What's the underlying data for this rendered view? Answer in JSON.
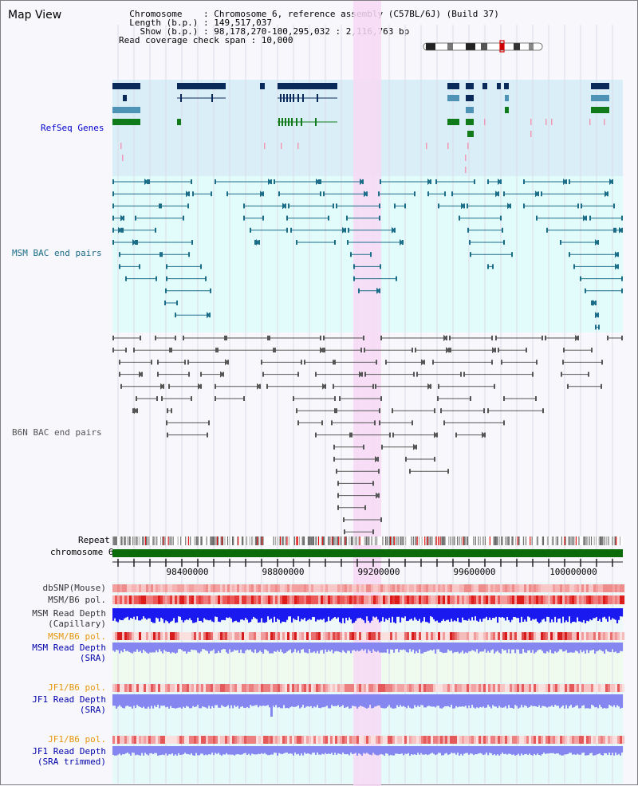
{
  "title": "Map View",
  "info": {
    "line1": "  Chromosome    : Chromosome 6, reference assembly (C57BL/6J) (Build 37)",
    "line2": "  Length (b.p.) : 149,517,037",
    "line3": "    Show (b.p.) : 98,178,270-100,295,032 : 2,116,763 bp",
    "line4": "Read coverage check span : 10,000"
  },
  "tracks": {
    "refseq": "RefSeq Genes",
    "msm_bac": "MSM BAC end pairs",
    "b6n_bac": "B6N BAC end pairs",
    "repeat": "Repeat",
    "chromosome": "chromosome 6",
    "dbsnp": "dbSNP(Mouse)",
    "msm_b6_pol": "MSM/B6 pol.",
    "msm_rd_cap_1": "MSM Read Depth",
    "msm_rd_cap_2": "(Capillary)",
    "msm_b6_pol2": "MSM/B6 pol.",
    "msm_rd_sra_1": "MSM Read Depth",
    "msm_rd_sra_2": "(SRA)",
    "jf1_b6_pol": "JF1/B6 pol.",
    "jf1_rd_sra_1": "JF1 Read Depth",
    "jf1_rd_sra_2": "(SRA)",
    "jf1_b6_pol2": "JF1/B6 pol.",
    "jf1_rd_tr_1": "JF1 Read Depth",
    "jf1_rd_tr_2": "(SRA trimmed)"
  },
  "axis": {
    "ticks": [
      {
        "label": "98400000"
      },
      {
        "label": "98800000"
      },
      {
        "label": "99200000"
      },
      {
        "label": "99600000"
      },
      {
        "label": "100000000"
      }
    ]
  },
  "colors": {
    "refseq_bg": "#daeef8",
    "msm_bg": "#e2fbfb",
    "b6n_bg": "#f8f8fc",
    "highlight": "#f7d9f5",
    "refseq_dark": "#0a2a5a",
    "refseq_mid": "#4e93b5",
    "refseq_green": "#117a1a",
    "msm_line": "#1c6e88",
    "b6n_line": "#555555",
    "chromosome_bar": "#0b6b0b",
    "msm_depth": "#1a1af0",
    "sra_depth": "#8686f0",
    "label_blue": "#00008b",
    "label_orange": "#e6960a",
    "label_teal": "#1c6e88"
  }
}
